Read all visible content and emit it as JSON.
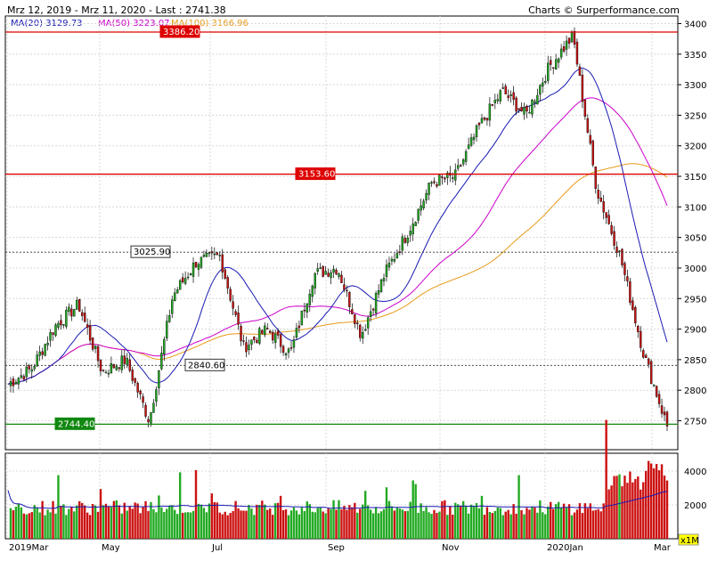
{
  "header": {
    "range": "Mrz 12, 2019 - Mrz 11, 2020 - Last : 2741.38",
    "source": "Charts © Surperformance.com"
  },
  "legend": [
    {
      "label": "MA(20)",
      "value": "3129.73",
      "color": "#1a1ab4"
    },
    {
      "label": "MA(50)",
      "value": "3223.07",
      "color": "#cc00cc"
    },
    {
      "label": "MA(100)",
      "value": "3166.96",
      "color": "#e89a1a"
    }
  ],
  "colors": {
    "up": "#22aa22",
    "down": "#cc1111",
    "ma20": "#1a1ab4",
    "ma50": "#cc00cc",
    "ma100": "#e89a1a",
    "resistance": "#dd0000",
    "support": "#118811",
    "neutral": "#333333",
    "volume_avg": "#1a1ab4",
    "volume_unit": "#ffff00"
  },
  "chart_data": {
    "type": "candlestick",
    "price_axis": {
      "ylim": [
        2700,
        3400
      ],
      "ticks": [
        2750,
        2800,
        2850,
        2900,
        2950,
        3000,
        3050,
        3100,
        3150,
        3200,
        3250,
        3300,
        3350,
        3400
      ]
    },
    "volume_axis": {
      "ylim": [
        0,
        5000
      ],
      "ticks": [
        2000,
        4000
      ],
      "unit": "x1M"
    },
    "x_axis": {
      "labels": [
        "2019Mar",
        "May",
        "Jul",
        "Sep",
        "Nov",
        "2020Jan",
        "Mar"
      ]
    },
    "levels": [
      {
        "label": "3386.20",
        "value": 3386.2,
        "style": "resistance"
      },
      {
        "label": "3153.60",
        "value": 3153.6,
        "style": "resistance"
      },
      {
        "label": "3025.90",
        "value": 3025.9,
        "style": "neutral"
      },
      {
        "label": "2840.60",
        "value": 2840.6,
        "style": "neutral"
      },
      {
        "label": "2744.40",
        "value": 2744.4,
        "style": "support"
      }
    ],
    "close_path": [
      {
        "month": "2019Mar",
        "value": 2810
      },
      {
        "month": "2019Mar",
        "value": 2835
      },
      {
        "month": "2019Apr",
        "value": 2905
      },
      {
        "month": "2019Apr",
        "value": 2940
      },
      {
        "month": "2019May",
        "value": 2830
      },
      {
        "month": "2019May",
        "value": 2850
      },
      {
        "month": "2019Jun",
        "value": 2750
      },
      {
        "month": "2019Jun",
        "value": 2955
      },
      {
        "month": "2019Jul",
        "value": 3010
      },
      {
        "month": "2019Jul",
        "value": 3020
      },
      {
        "month": "2019Aug",
        "value": 2870
      },
      {
        "month": "2019Aug",
        "value": 2900
      },
      {
        "month": "2019Aug",
        "value": 2860
      },
      {
        "month": "2019Sep",
        "value": 2990
      },
      {
        "month": "2019Sep",
        "value": 3000
      },
      {
        "month": "2019Oct",
        "value": 2890
      },
      {
        "month": "2019Oct",
        "value": 2990
      },
      {
        "month": "2019Nov",
        "value": 3060
      },
      {
        "month": "2019Nov",
        "value": 3140
      },
      {
        "month": "2019Dec",
        "value": 3150
      },
      {
        "month": "2019Dec",
        "value": 3230
      },
      {
        "month": "2020Jan",
        "value": 3290
      },
      {
        "month": "2020Jan",
        "value": 3250
      },
      {
        "month": "2020Feb",
        "value": 3330
      },
      {
        "month": "2020Feb",
        "value": 3380
      },
      {
        "month": "2020Feb",
        "value": 3130
      },
      {
        "month": "2020Mar",
        "value": 3020
      },
      {
        "month": "2020Mar",
        "value": 2860
      },
      {
        "month": "2020Mar",
        "value": 2741
      }
    ],
    "volume_base": 1750,
    "volume_spikes": [
      {
        "month": "2020Feb",
        "value": 4300
      },
      {
        "month": "2020Mar",
        "value": 4600
      }
    ]
  }
}
